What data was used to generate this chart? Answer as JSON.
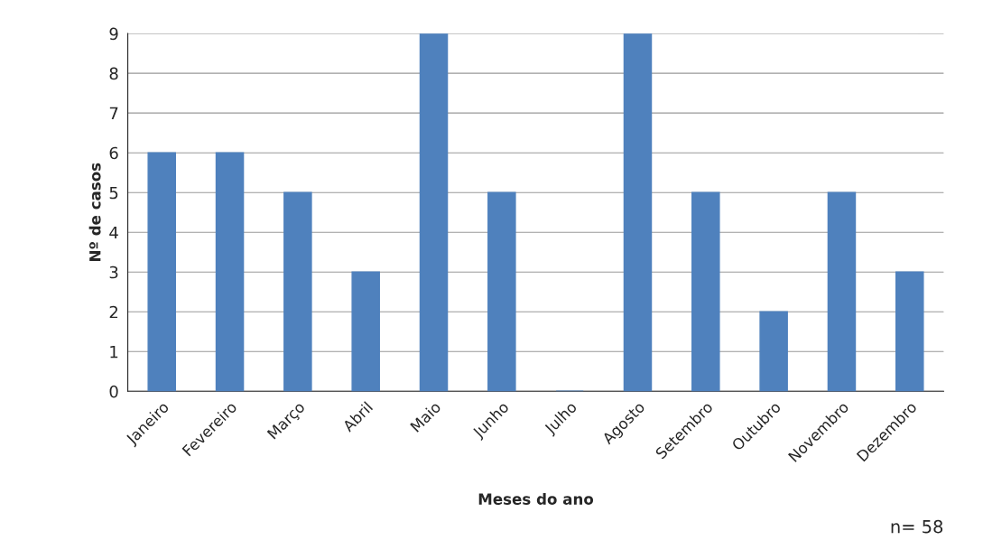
{
  "chart_data": {
    "type": "bar",
    "categories": [
      "Janeiro",
      "Fevereiro",
      "Março",
      "Abril",
      "Maio",
      "Junho",
      "Julho",
      "Agosto",
      "Setembro",
      "Outubro",
      "Novembro",
      "Dezembro"
    ],
    "values": [
      6,
      6,
      5,
      3,
      9,
      5,
      0,
      9,
      5,
      2,
      5,
      3
    ],
    "color": "#4f81bd",
    "xlabel": "Meses do ano",
    "ylabel": "Nº de casos",
    "ylim": [
      0,
      9
    ],
    "yticks": [
      0,
      1,
      2,
      3,
      4,
      5,
      6,
      7,
      8,
      9
    ],
    "grid": "y",
    "legend": false,
    "annotations": [
      "n= 58"
    ]
  }
}
